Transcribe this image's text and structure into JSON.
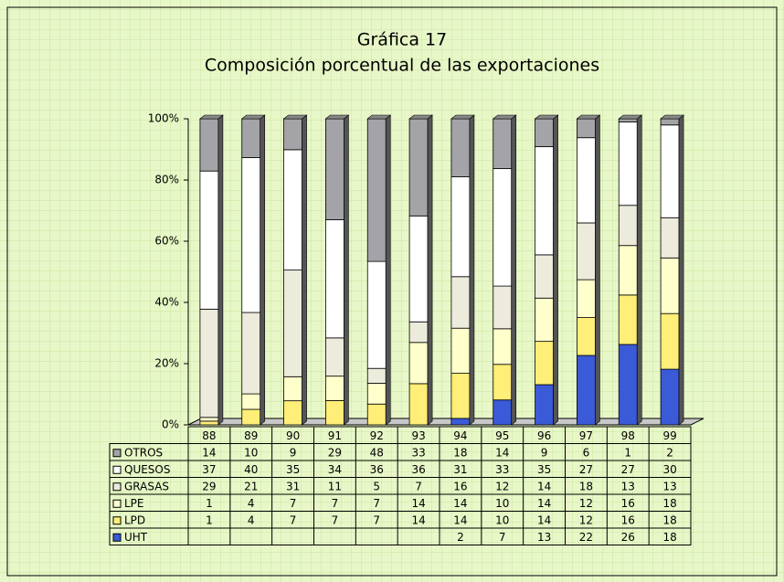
{
  "chart_data": {
    "type": "bar",
    "stacked": "percent",
    "title": "Gráfica 17",
    "subtitle": "Composición porcentual de las exportaciones",
    "categories": [
      "88",
      "89",
      "90",
      "91",
      "92",
      "93",
      "94",
      "95",
      "96",
      "97",
      "98",
      "99"
    ],
    "series": [
      {
        "name": "OTROS",
        "color": "#a3a3a8",
        "values": [
          14,
          10,
          9,
          29,
          48,
          33,
          18,
          14,
          9,
          6,
          1,
          2
        ]
      },
      {
        "name": "QUESOS",
        "color": "#ffffff",
        "values": [
          37,
          40,
          35,
          34,
          36,
          36,
          31,
          33,
          35,
          27,
          27,
          30
        ]
      },
      {
        "name": "GRASAS",
        "color": "#ecebdc",
        "values": [
          29,
          21,
          31,
          11,
          5,
          7,
          16,
          12,
          14,
          18,
          13,
          13
        ]
      },
      {
        "name": "LPE",
        "color": "#ffffcc",
        "values": [
          1,
          4,
          7,
          7,
          7,
          14,
          14,
          10,
          14,
          12,
          16,
          18
        ]
      },
      {
        "name": "LPD",
        "color": "#ffee77",
        "values": [
          1,
          4,
          7,
          7,
          7,
          14,
          14,
          10,
          14,
          12,
          16,
          18
        ]
      },
      {
        "name": "UHT",
        "color": "#3a5ad8",
        "values": [
          null,
          null,
          null,
          null,
          null,
          null,
          2,
          7,
          13,
          22,
          26,
          18
        ]
      }
    ],
    "ylim": [
      0,
      100
    ],
    "yticks": [
      {
        "value": 0,
        "label": "0%"
      },
      {
        "value": 20,
        "label": "20%"
      },
      {
        "value": 40,
        "label": "40%"
      },
      {
        "value": 60,
        "label": "60%"
      },
      {
        "value": 80,
        "label": "80%"
      },
      {
        "value": 100,
        "label": "100%"
      }
    ],
    "data_table": true
  }
}
